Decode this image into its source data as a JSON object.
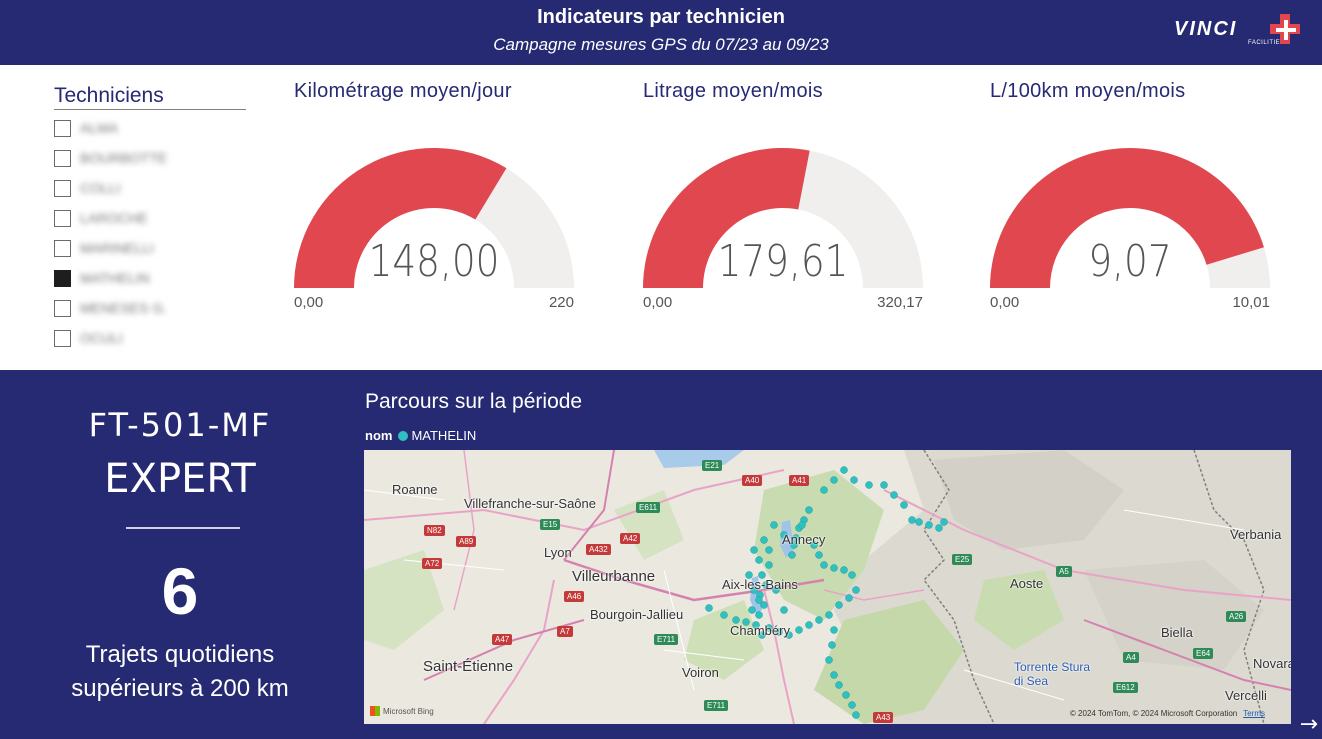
{
  "header": {
    "title": "Indicateurs par technicien",
    "subtitle": "Campagne mesures GPS du 07/23 au 09/23",
    "logo_text": "VINCI",
    "logo_subtext": "FACILITIES"
  },
  "slicer": {
    "label": "Techniciens",
    "items": [
      {
        "label": "ALMA",
        "checked": false
      },
      {
        "label": "BOURBOTTE",
        "checked": false
      },
      {
        "label": "COLLI",
        "checked": false
      },
      {
        "label": "LAROCHE",
        "checked": false
      },
      {
        "label": "MARINELLI",
        "checked": false
      },
      {
        "label": "MATHELIN",
        "checked": true
      },
      {
        "label": "MENESES G.",
        "checked": false
      },
      {
        "label": "OCULI",
        "checked": false
      }
    ]
  },
  "gauges": [
    {
      "title": "Kilométrage moyen/jour",
      "value": "148,00",
      "min": "0,00",
      "max": "220",
      "fraction": 0.673
    },
    {
      "title": "Litrage moyen/mois",
      "value": "179,61",
      "min": "0,00",
      "max": "320,17",
      "fraction": 0.561
    },
    {
      "title": "L/100km moyen/mois",
      "value": "9,07",
      "min": "0,00",
      "max": "10,01",
      "fraction": 0.906
    }
  ],
  "colors": {
    "brand_navy": "#252a72",
    "gauge_fill": "#e0474f",
    "gauge_track": "#f0efed",
    "map_point": "#2fc0c0"
  },
  "kpi": {
    "plate": "FT-501-MF",
    "level": "EXPERT",
    "count": "6",
    "description_line1": "Trajets quotidiens",
    "description_line2": "supérieurs à 200 km"
  },
  "map": {
    "title": "Parcours sur la période",
    "legend_title": "nom",
    "legend_item": "MATHELIN",
    "cities": [
      "Roanne",
      "Villefranche-sur-Saône",
      "Lyon",
      "Villeurbanne",
      "Bourgoin-Jallieu",
      "Saint-Étienne",
      "Voiron",
      "Aix-les-Bains",
      "Annecy",
      "Chambéry",
      "Aoste",
      "Biella",
      "Verbania",
      "Novara",
      "Vercelli",
      "Torrente Stura di Sea"
    ],
    "roads": [
      "E21",
      "A40",
      "A41",
      "E611",
      "E15",
      "N82",
      "A89",
      "A432",
      "A42",
      "A72",
      "A46",
      "A7",
      "A47",
      "E711",
      "E25",
      "A5",
      "A26",
      "E64",
      "A4",
      "E612",
      "A43",
      "E711"
    ],
    "copyright": "© 2024 TomTom, © 2024 Microsoft Corporation",
    "terms": "Terms",
    "provider": "Microsoft Bing"
  }
}
